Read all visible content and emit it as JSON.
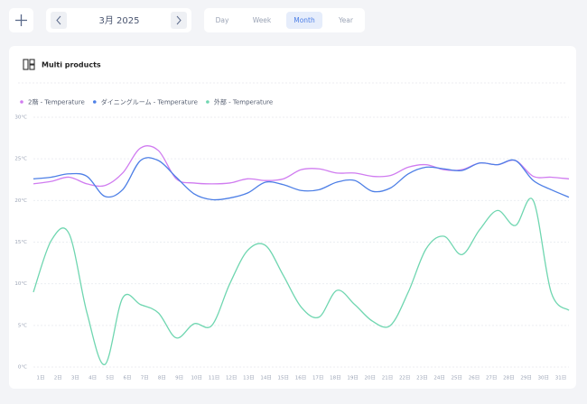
{
  "toolbar": {
    "date": "3月 2025",
    "tabs": [
      "Day",
      "Week",
      "Month",
      "Year"
    ]
  },
  "card": {
    "title": "Multi products"
  },
  "chart_data": {
    "type": "line",
    "categories": [
      "1日",
      "2日",
      "3日",
      "4日",
      "5日",
      "6日",
      "7日",
      "8日",
      "9日",
      "10日",
      "11日",
      "12日",
      "13日",
      "14日",
      "15日",
      "16日",
      "17日",
      "18日",
      "19日",
      "20日",
      "21日",
      "22日",
      "23日",
      "24日",
      "25日",
      "26日",
      "27日",
      "28日",
      "29日",
      "30日",
      "31日"
    ],
    "series": [
      {
        "name": "2階 - Temperature",
        "color": "#d07cf0",
        "values": [
          22,
          22.3,
          22.8,
          22,
          21.8,
          23.3,
          26.3,
          26,
          22.6,
          22.1,
          22,
          22.1,
          22.6,
          22.4,
          22.6,
          23.7,
          23.8,
          23.3,
          23.3,
          22.9,
          23,
          24,
          24.3,
          23.7,
          23.7,
          24.5,
          24.3,
          24.8,
          22.9,
          22.8,
          22.6
        ]
      },
      {
        "name": "ダイニングルーム - Temperature",
        "color": "#4d7fe6",
        "values": [
          22.6,
          22.8,
          23.2,
          22.9,
          20.5,
          21.3,
          24.8,
          24.8,
          22.8,
          20.8,
          20.1,
          20.3,
          20.9,
          22.2,
          21.9,
          21.2,
          21.3,
          22.2,
          22.4,
          21.1,
          21.5,
          23.2,
          24,
          23.8,
          23.6,
          24.5,
          24.3,
          24.8,
          22.4,
          21.3,
          20.4
        ]
      },
      {
        "name": "外部 - Temperature",
        "color": "#6fd6b0",
        "values": [
          9,
          15.2,
          16,
          6.5,
          0.3,
          8.3,
          7.5,
          6.5,
          3.5,
          5.2,
          5,
          10,
          14,
          14.6,
          11,
          7.2,
          6,
          9.2,
          7.5,
          5.5,
          5,
          9,
          14.2,
          15.7,
          13.5,
          16.5,
          18.8,
          17,
          20,
          9,
          6.8
        ]
      }
    ],
    "ylim": [
      0,
      30
    ],
    "yticks": [
      {
        "value": 0,
        "label": "0°C"
      },
      {
        "value": 5,
        "label": "5°C"
      },
      {
        "value": 10,
        "label": "10°C"
      },
      {
        "value": 15,
        "label": "15°C"
      },
      {
        "value": 20,
        "label": "20°C"
      },
      {
        "value": 25,
        "label": "25°C"
      },
      {
        "value": 30,
        "label": "30°C"
      }
    ],
    "grid": true
  }
}
